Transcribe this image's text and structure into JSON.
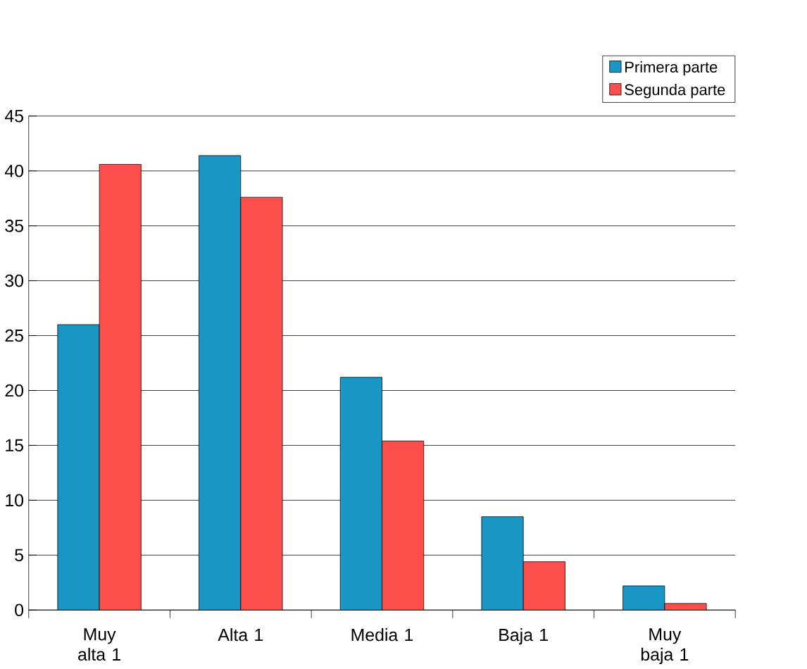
{
  "chart_data": {
    "type": "bar",
    "categories": [
      "Muy alta 1",
      "Alta 1",
      "Media 1",
      "Baja 1",
      "Muy baja 1"
    ],
    "series": [
      {
        "name": "Primera parte",
        "color": "#1a96c4",
        "values": [
          26.0,
          41.4,
          21.2,
          8.5,
          2.2
        ]
      },
      {
        "name": "Segunda parte",
        "color": "#fc4f4b",
        "values": [
          40.6,
          37.6,
          15.4,
          4.4,
          0.6
        ]
      }
    ],
    "ylim": [
      0,
      45
    ],
    "yticks": [
      0,
      5,
      10,
      15,
      20,
      25,
      30,
      35,
      40,
      45
    ],
    "grid": "y",
    "legend": "top right"
  }
}
